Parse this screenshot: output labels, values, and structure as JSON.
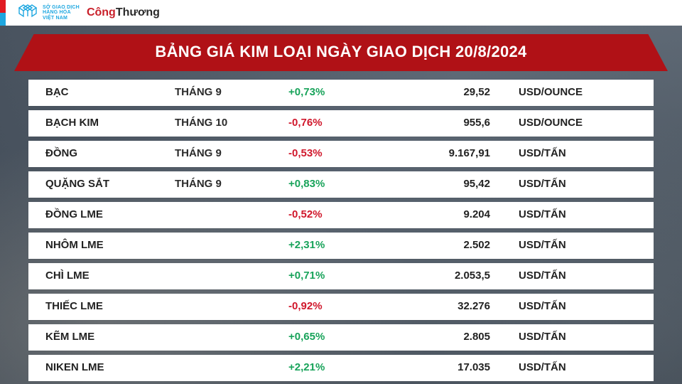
{
  "header": {
    "logo1_lines": [
      "SỞ GIAO DỊCH",
      "HÀNG HÓA",
      "VIỆT NAM"
    ],
    "logo2_a": "Công",
    "logo2_b": "Thương"
  },
  "title": "BẢNG GIÁ KIM LOẠI NGÀY GIAO DỊCH 20/8/2024",
  "colors": {
    "banner": "#b01116",
    "positive": "#18a35a",
    "negative": "#d0172b",
    "row_bg": "#ffffff",
    "page_bg_from": "#3a4552",
    "page_bg_to": "#4a5560",
    "accent_blue": "#1ea7e0",
    "accent_red": "#e11b22"
  },
  "table": {
    "columns": [
      "name",
      "month",
      "change",
      "price",
      "unit"
    ],
    "rows": [
      {
        "name": "BẠC",
        "month": "THÁNG 9",
        "change": "+0,73%",
        "dir": "pos",
        "price": "29,52",
        "unit": "USD/OUNCE"
      },
      {
        "name": "BẠCH KIM",
        "month": "THÁNG 10",
        "change": "-0,76%",
        "dir": "neg",
        "price": "955,6",
        "unit": "USD/OUNCE"
      },
      {
        "name": "ĐỒNG",
        "month": "THÁNG 9",
        "change": "-0,53%",
        "dir": "neg",
        "price": "9.167,91",
        "unit": "USD/TẤN"
      },
      {
        "name": "QUẶNG SẮT",
        "month": "THÁNG 9",
        "change": "+0,83%",
        "dir": "pos",
        "price": "95,42",
        "unit": "USD/TẤN"
      },
      {
        "name": "ĐỒNG LME",
        "month": "",
        "change": "-0,52%",
        "dir": "neg",
        "price": "9.204",
        "unit": "USD/TẤN"
      },
      {
        "name": "NHÔM LME",
        "month": "",
        "change": "+2,31%",
        "dir": "pos",
        "price": "2.502",
        "unit": "USD/TẤN"
      },
      {
        "name": "CHÌ LME",
        "month": "",
        "change": "+0,71%",
        "dir": "pos",
        "price": "2.053,5",
        "unit": "USD/TẤN"
      },
      {
        "name": "THIẾC LME",
        "month": "",
        "change": "-0,92%",
        "dir": "neg",
        "price": "32.276",
        "unit": "USD/TẤN"
      },
      {
        "name": "KẼM LME",
        "month": "",
        "change": "+0,65%",
        "dir": "pos",
        "price": "2.805",
        "unit": "USD/TẤN"
      },
      {
        "name": "NIKEN LME",
        "month": "",
        "change": "+2,21%",
        "dir": "pos",
        "price": "17.035",
        "unit": "USD/TẤN"
      }
    ]
  }
}
